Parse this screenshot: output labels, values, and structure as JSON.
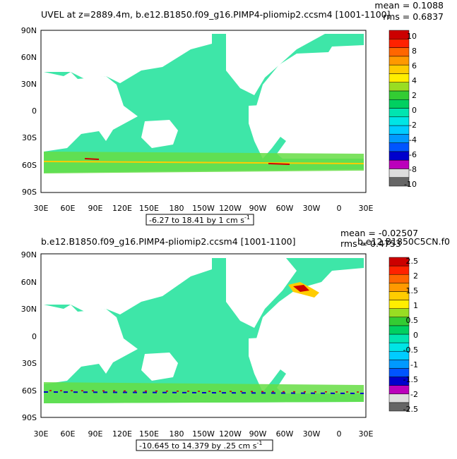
{
  "chart_data": [
    {
      "type": "heatmap",
      "title_left": "UVEL at z=2889.4m, b.e12.B1850.f09_g16.PIMP4-pliomip2.ccsm4 [1001-1100]",
      "title_right_mean": "mean = 0.1088",
      "title_right_rms": "rms = 0.6837",
      "range_label": "-6.27 to 18.41 by 1 cm s",
      "units_superscript": "-1",
      "y_ticks": [
        "90N",
        "60N",
        "30N",
        "0",
        "30S",
        "60S",
        "90S"
      ],
      "x_ticks": [
        "30E",
        "60E",
        "90E",
        "120E",
        "150E",
        "180",
        "150W",
        "120W",
        "90W",
        "60W",
        "30W",
        "0",
        "30E"
      ],
      "colorbar_labels": [
        "10",
        "8",
        "6",
        "4",
        "2",
        "0",
        "-2",
        "-4",
        "-6",
        "-8",
        "-10"
      ]
    },
    {
      "type": "heatmap",
      "title_left": "b.e12.B1850.f09_g16.PIMP4-pliomip2.ccsm4 [1001-1100]",
      "title_right_mean": "mean = -0.02507",
      "title_right_rms": "rms = 0.4753",
      "title_right_case": "b.e12.B1850C5CN.f0",
      "range_label": "-10.645 to 14.379 by .25 cm s",
      "units_superscript": "-1",
      "y_ticks": [
        "90N",
        "60N",
        "30N",
        "0",
        "30S",
        "60S",
        "90S"
      ],
      "x_ticks": [
        "30E",
        "60E",
        "90E",
        "120E",
        "150E",
        "180",
        "150W",
        "120W",
        "90W",
        "60W",
        "30W",
        "0",
        "30E"
      ],
      "colorbar_labels": [
        "2.5",
        "2",
        "1.5",
        "1",
        "0.5",
        "0",
        "-0.5",
        "-1",
        "-1.5",
        "-2",
        "-2.5"
      ]
    }
  ],
  "colors": {
    "palette": [
      "#666666",
      "#dddddd",
      "#bb00bb",
      "#0000cc",
      "#0055ff",
      "#0099ff",
      "#00ccff",
      "#00e5e5",
      "#00e5b0",
      "#00d060",
      "#33cc33",
      "#99dd22",
      "#ffee00",
      "#ffcc00",
      "#ff9900",
      "#ff6600",
      "#ff2200",
      "#cc0000"
    ],
    "ocean_main": "#3ee6a8",
    "ocean_band": "#66dd44"
  }
}
